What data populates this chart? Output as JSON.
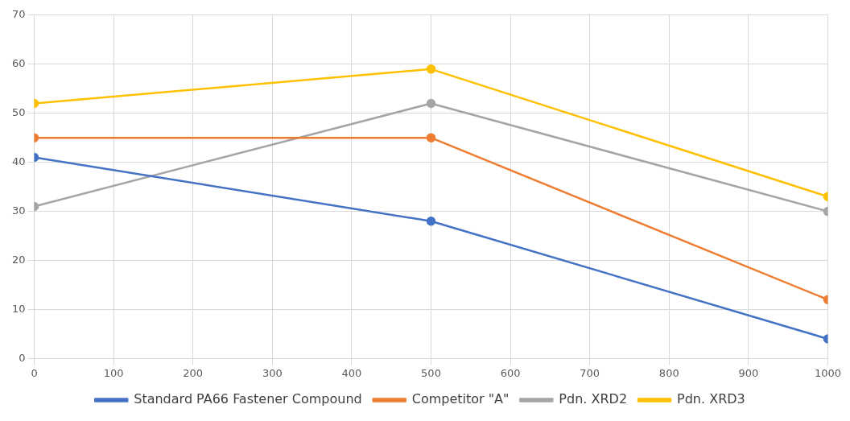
{
  "chart_data": {
    "type": "line",
    "x": [
      0,
      500,
      1000
    ],
    "series": [
      {
        "name": "Standard PA66 Fastener Compound",
        "color": "#4472c4",
        "values": [
          41,
          28,
          4
        ]
      },
      {
        "name": "Competitor \"A\"",
        "color": "#ed7d31",
        "values": [
          45,
          45,
          12
        ]
      },
      {
        "name": "Pdn. XRD2",
        "color": "#a5a5a5",
        "values": [
          31,
          52,
          30
        ]
      },
      {
        "name": "Pdn. XRD3",
        "color": "#ffc000",
        "values": [
          52,
          59,
          33
        ]
      }
    ],
    "xlim": [
      0,
      1000
    ],
    "xticks": [
      0,
      100,
      200,
      300,
      400,
      500,
      600,
      700,
      800,
      900,
      1000
    ],
    "ylim": [
      0,
      70
    ],
    "yticks": [
      0,
      10,
      20,
      30,
      40,
      50,
      60,
      70
    ],
    "grid": true,
    "legend": "bottom",
    "marker": "circle",
    "line_style": "solid"
  }
}
